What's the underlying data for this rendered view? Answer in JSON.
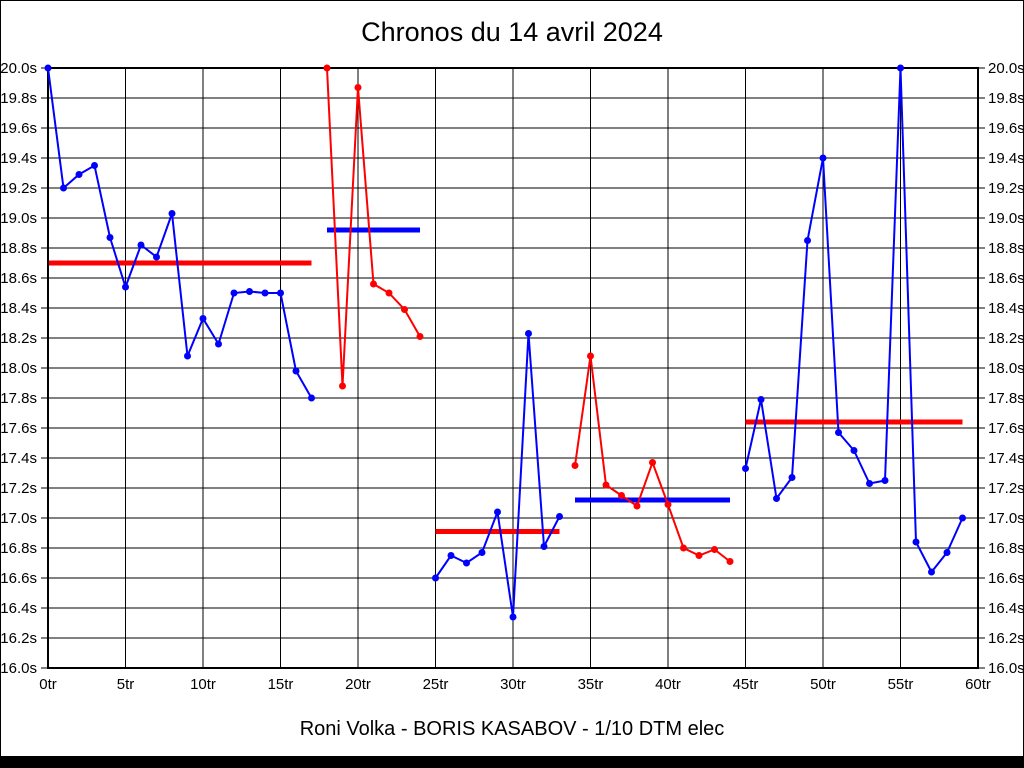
{
  "title": "Chronos du 14 avril 2024",
  "caption": "Roni Volka - BORIS KASABOV - 1/10 DTM elec",
  "colors": {
    "blue_series": "#0000ff",
    "red_series": "#ff0000",
    "grid": "#000000",
    "background": "#ffffff"
  },
  "chart_data": {
    "type": "line",
    "title": "Chronos du 14 avril 2024",
    "x_unit": "tr",
    "y_unit": "s",
    "xlim": [
      0,
      60
    ],
    "ylim": [
      16.0,
      20.0
    ],
    "grid": true,
    "legend": "none",
    "x_ticks": [
      {
        "value": 0,
        "label": "0tr"
      },
      {
        "value": 5,
        "label": "5tr"
      },
      {
        "value": 10,
        "label": "10tr"
      },
      {
        "value": 15,
        "label": "15tr"
      },
      {
        "value": 20,
        "label": "20tr"
      },
      {
        "value": 25,
        "label": "25tr"
      },
      {
        "value": 30,
        "label": "30tr"
      },
      {
        "value": 35,
        "label": "35tr"
      },
      {
        "value": 40,
        "label": "40tr"
      },
      {
        "value": 45,
        "label": "45tr"
      },
      {
        "value": 50,
        "label": "50tr"
      },
      {
        "value": 55,
        "label": "55tr"
      },
      {
        "value": 60,
        "label": "60tr"
      }
    ],
    "y_ticks": [
      {
        "value": 16.0,
        "label": "16.0s"
      },
      {
        "value": 16.2,
        "label": "16.2s"
      },
      {
        "value": 16.4,
        "label": "16.4s"
      },
      {
        "value": 16.6,
        "label": "16.6s"
      },
      {
        "value": 16.8,
        "label": "16.8s"
      },
      {
        "value": 17.0,
        "label": "17.0s"
      },
      {
        "value": 17.2,
        "label": "17.2s"
      },
      {
        "value": 17.4,
        "label": "17.4s"
      },
      {
        "value": 17.6,
        "label": "17.6s"
      },
      {
        "value": 17.8,
        "label": "17.8s"
      },
      {
        "value": 18.0,
        "label": "18.0s"
      },
      {
        "value": 18.2,
        "label": "18.2s"
      },
      {
        "value": 18.4,
        "label": "18.4s"
      },
      {
        "value": 18.6,
        "label": "18.6s"
      },
      {
        "value": 18.8,
        "label": "18.8s"
      },
      {
        "value": 19.0,
        "label": "19.0s"
      },
      {
        "value": 19.2,
        "label": "19.2s"
      },
      {
        "value": 19.4,
        "label": "19.4s"
      },
      {
        "value": 19.6,
        "label": "19.6s"
      },
      {
        "value": 19.8,
        "label": "19.8s"
      },
      {
        "value": 20.0,
        "label": "20.0s"
      }
    ],
    "series": [
      {
        "name": "stint-1-blue",
        "color": "#0000ff",
        "start_lap": 0,
        "times": [
          20.0,
          19.2,
          19.29,
          19.35,
          18.87,
          18.54,
          18.82,
          18.74,
          19.03,
          18.08,
          18.33,
          18.16,
          18.5,
          18.51,
          18.5,
          18.5,
          17.98,
          17.8
        ]
      },
      {
        "name": "stint-2-red",
        "color": "#ff0000",
        "start_lap": 18,
        "times": [
          20.0,
          17.88,
          19.87,
          18.56,
          18.5,
          18.39,
          18.21
        ]
      },
      {
        "name": "stint-3-blue",
        "color": "#0000ff",
        "start_lap": 25,
        "times": [
          16.6,
          16.75,
          16.7,
          16.77,
          17.04,
          16.34,
          18.23,
          16.81,
          17.01
        ]
      },
      {
        "name": "stint-4-red",
        "color": "#ff0000",
        "start_lap": 34,
        "times": [
          17.35,
          18.08,
          17.22,
          17.15,
          17.08,
          17.37,
          17.09,
          16.8,
          16.75,
          16.79,
          16.71
        ]
      },
      {
        "name": "stint-5-blue",
        "color": "#0000ff",
        "start_lap": 45,
        "times": [
          17.33,
          17.79,
          17.13,
          17.27,
          18.85,
          19.4,
          17.57,
          17.45,
          17.23,
          17.25,
          20.0,
          16.84,
          16.64,
          16.77,
          17.0
        ]
      }
    ],
    "average_lines": [
      {
        "name": "avg-stint-1",
        "color": "#ff0000",
        "value": 18.7,
        "from_lap": 0,
        "to_lap": 17
      },
      {
        "name": "avg-stint-2",
        "color": "#0000ff",
        "value": 18.92,
        "from_lap": 18,
        "to_lap": 24
      },
      {
        "name": "avg-stint-3",
        "color": "#ff0000",
        "value": 16.91,
        "from_lap": 25,
        "to_lap": 33
      },
      {
        "name": "avg-stint-4",
        "color": "#0000ff",
        "value": 17.12,
        "from_lap": 34,
        "to_lap": 44
      },
      {
        "name": "avg-stint-5",
        "color": "#ff0000",
        "value": 17.64,
        "from_lap": 45,
        "to_lap": 59
      }
    ]
  }
}
